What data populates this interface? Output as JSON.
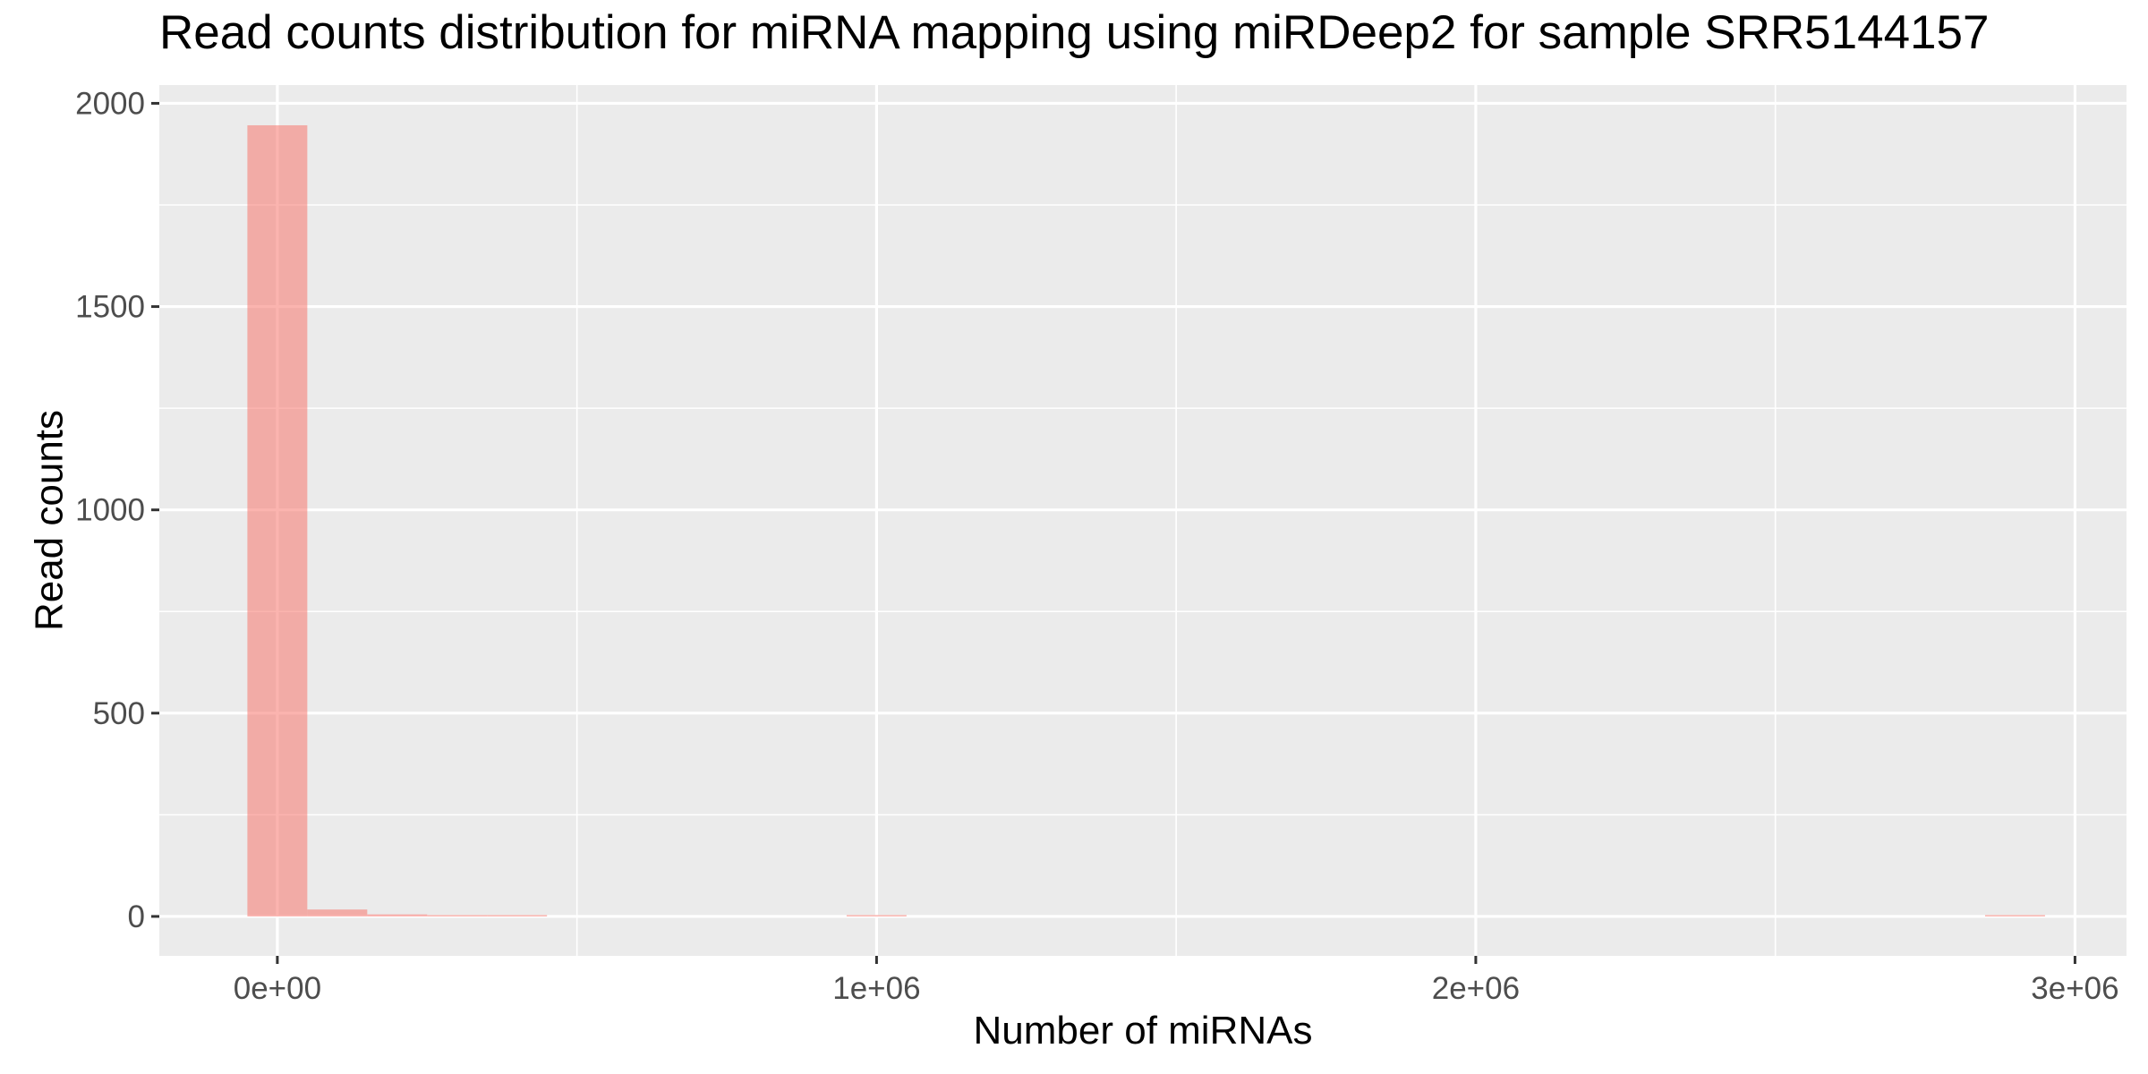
{
  "chart_data": {
    "type": "bar",
    "title": "Read counts distribution for miRNA mapping using miRDeep2 for sample SRR5144157",
    "xlabel": "Number of miRNAs",
    "ylabel": "Read counts",
    "xlim": [
      -197000,
      3086000
    ],
    "ylim": [
      -97,
      2045
    ],
    "x_ticks": [
      {
        "value": 0,
        "label": "0e+00"
      },
      {
        "value": 1000000,
        "label": "1e+06"
      },
      {
        "value": 2000000,
        "label": "2e+06"
      },
      {
        "value": 3000000,
        "label": "3e+06"
      }
    ],
    "y_ticks": [
      {
        "value": 0,
        "label": "0"
      },
      {
        "value": 500,
        "label": "500"
      },
      {
        "value": 1000,
        "label": "1000"
      },
      {
        "value": 1500,
        "label": "1500"
      },
      {
        "value": 2000,
        "label": "2000"
      }
    ],
    "bin_width": 100000,
    "bins": [
      {
        "x": 0,
        "count": 1946
      },
      {
        "x": 100000,
        "count": 17
      },
      {
        "x": 200000,
        "count": 5
      },
      {
        "x": 300000,
        "count": 2
      },
      {
        "x": 400000,
        "count": 1
      },
      {
        "x": 1000000,
        "count": 1
      },
      {
        "x": 2900000,
        "count": 1
      }
    ],
    "bar_color": "#F8766D",
    "bar_alpha": 0.55,
    "panel_background": "#EBEBEB",
    "grid": true,
    "legend": "none"
  }
}
